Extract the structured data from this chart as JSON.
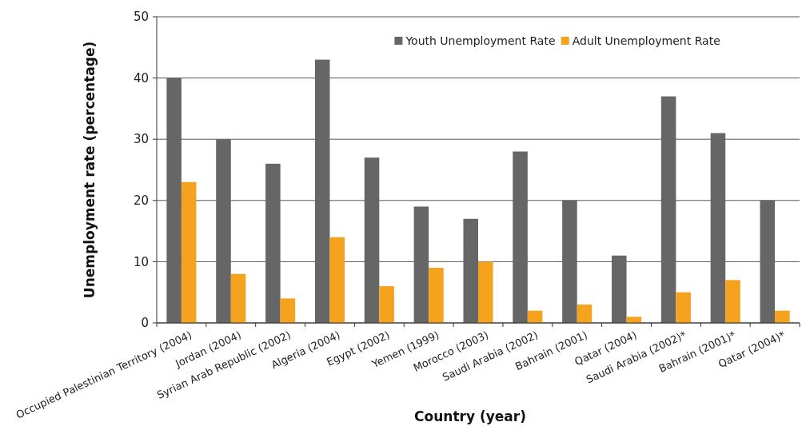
{
  "chart_data": {
    "type": "bar",
    "xlabel": "Country (year)",
    "ylabel": "Unemployment rate (percentage)",
    "categories": [
      "Occupied Palestinian Territory (2004)",
      "Jordan (2004)",
      "Syrian Arab Republic (2002)",
      "Algeria (2004)",
      "Egypt (2002)",
      "Yemen (1999)",
      "Morocco (2003)",
      "Saudi Arabia (2002)",
      "Bahrain (2001)",
      "Qatar (2004)",
      "Saudi Arabia (2002)*",
      "Bahrain (2001)*",
      "Qatar (2004)*"
    ],
    "series": [
      {
        "name": "Youth Unemployment Rate",
        "color": "#666666",
        "values": [
          40,
          30,
          26,
          43,
          27,
          19,
          17,
          28,
          20,
          11,
          37,
          31,
          20
        ]
      },
      {
        "name": "Adult Unemployment Rate",
        "color": "#f5a21f",
        "values": [
          23,
          8,
          4,
          14,
          6,
          9,
          10,
          2,
          3,
          1,
          5,
          7,
          2
        ]
      }
    ],
    "ylim": [
      0,
      50
    ],
    "yticks": [
      0,
      10,
      20,
      30,
      40,
      50
    ],
    "grid": "y",
    "legend": "top right"
  }
}
